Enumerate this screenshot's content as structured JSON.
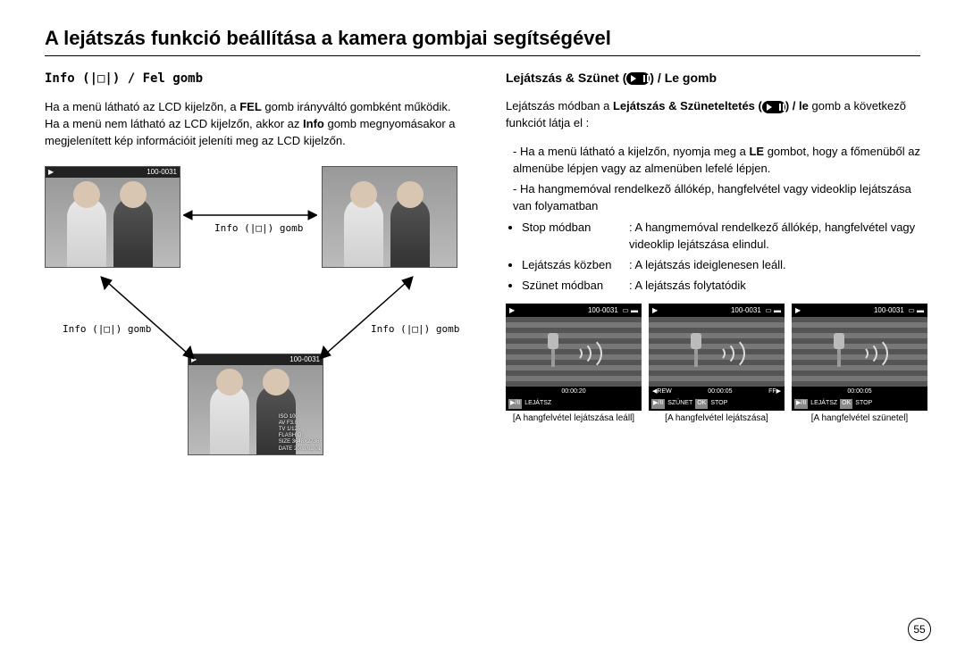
{
  "title": "A lejátszás funkció beállítása a kamera gombjai segítségével",
  "left": {
    "heading": "Info (|□|) / Fel gomb",
    "para1_a": "Ha a menü látható az LCD kijelzõn, a ",
    "para1_b": "FEL",
    "para1_c": " gomb irányváltó gombként működik.",
    "para2_a": "Ha a menü nem látható az LCD kijelzőn, akkor az ",
    "para2_b": "Info",
    "para2_c": " gomb megnyomásakor a megjelenített kép információit jeleníti meg az LCD kijelzőn.",
    "label": "Info (|□|) gomb",
    "counter": "100-0031",
    "osd": {
      "iso": "ISO   100",
      "av": "AV   F3.0",
      "tv": "TV   1/125",
      "flash": "FLASH On",
      "size": "SIZE  3648X2736",
      "date": "DATE 2008/01/01"
    }
  },
  "right": {
    "heading_a": "Lejátszás & Szünet (",
    "heading_b": ") / Le gomb",
    "para1_a": "Lejátszás módban a ",
    "para1_b": "Lejátszás & Szüneteltetés (",
    "para1_c": ") / le",
    "para1_d": " gomb a következõ funkciót látja el :",
    "bul1_a": "- Ha a menü látható a kijelzőn, nyomja meg a ",
    "bul1_b": "LE",
    "bul1_c": " gombot, hogy a főmenüből az almenübe lépjen vagy az almenüben lefelé lépjen.",
    "bul2": "- Ha hangmemóval rendelkezõ állókép, hangfelvétel vagy videoklip lejátszása van folyamatban",
    "modes": [
      {
        "label": "Stop módban",
        "desc": ": A hangmemóval rendelkező állókép, hangfelvétel vagy videoklip lejátszása elindul."
      },
      {
        "label": "Lejátszás közben",
        "desc": ": A lejátszás ideiglenesen leáll."
      },
      {
        "label": "Szünet módban",
        "desc": ": A lejátszás folytatódik"
      }
    ],
    "lcds": [
      {
        "counter": "100-0031",
        "time": "00:00:20",
        "bar_l": "",
        "bar_r": "",
        "bot": [
          "▶/II",
          "LEJÁTSZ"
        ],
        "caption": "A hangfelvétel lejátszása leáll"
      },
      {
        "counter": "100-0031",
        "time": "00:00:05",
        "bar_l": "◀REW",
        "bar_r": "FF▶",
        "bot": [
          "▶/II",
          "SZÜNET",
          "OK",
          "STOP"
        ],
        "caption": "A hangfelvétel lejátszása"
      },
      {
        "counter": "100-0031",
        "time": "00:00:05",
        "bar_l": "",
        "bar_r": "",
        "bot": [
          "▶/II",
          "LEJÁTSZ",
          "OK",
          "STOP"
        ],
        "caption": "A hangfelvétel szünetel"
      }
    ]
  },
  "page": "55"
}
